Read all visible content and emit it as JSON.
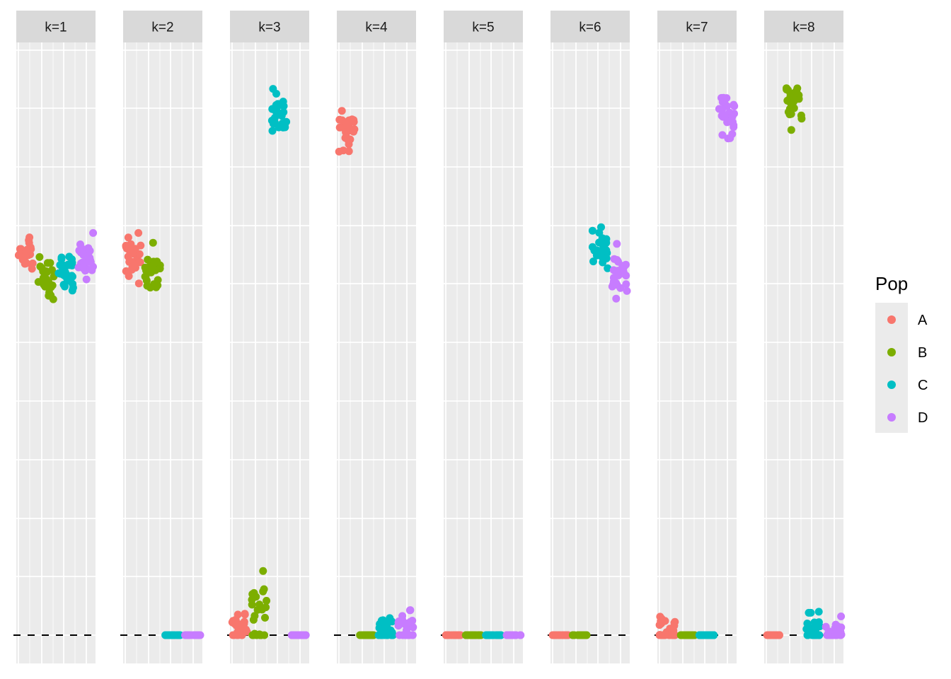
{
  "chart_data": {
    "type": "scatter",
    "facet_by": "k",
    "facets": [
      "k=1",
      "k=2",
      "k=3",
      "k=4",
      "k=5",
      "k=6",
      "k=7",
      "k=8"
    ],
    "xlabel": "",
    "ylabel": "",
    "reference_line": "dashed",
    "legend": {
      "title": "Pop",
      "position": "right",
      "entries": [
        {
          "name": "A",
          "color": "#F8766D"
        },
        {
          "name": "B",
          "color": "#7CAE00"
        },
        {
          "name": "C",
          "color": "#00BFC4"
        },
        {
          "name": "D",
          "color": "#C77CFF"
        }
      ]
    },
    "grid": true,
    "series": [
      {
        "name": "A",
        "mean_by_facet": [
          0.655,
          0.645,
          0.02,
          0.865,
          0.0,
          0.0,
          0.015,
          0.0
        ]
      },
      {
        "name": "B",
        "mean_by_facet": [
          0.61,
          0.625,
          0.05,
          0.0,
          0.0,
          0.0,
          0.0,
          0.915
        ]
      },
      {
        "name": "C",
        "mean_by_facet": [
          0.62,
          0.0,
          0.885,
          0.015,
          0.0,
          0.665,
          0.0,
          0.02
        ]
      },
      {
        "name": "D",
        "mean_by_facet": [
          0.64,
          0.0,
          0.0,
          0.02,
          0.0,
          0.615,
          0.895,
          0.01
        ]
      }
    ]
  }
}
